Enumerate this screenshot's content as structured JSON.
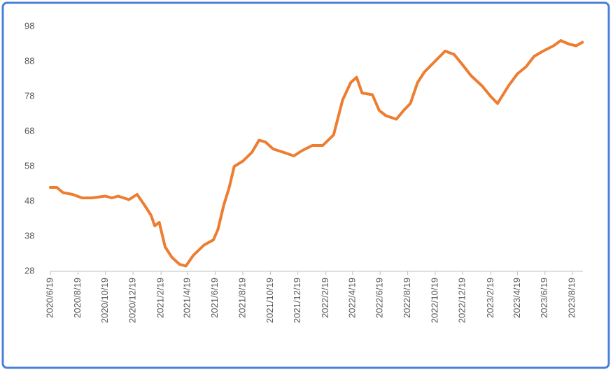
{
  "chart_data": {
    "type": "line",
    "x": [
      "2020/6/19",
      "2020/7/3",
      "2020/7/17",
      "2020/8/7",
      "2020/8/28",
      "2020/9/18",
      "2020/10/19",
      "2020/11/2",
      "2020/11/16",
      "2020/12/10",
      "2020/12/28",
      "2021/1/13",
      "2021/1/28",
      "2021/2/5",
      "2021/2/15",
      "2021/2/28",
      "2021/3/15",
      "2021/4/1",
      "2021/4/15",
      "2021/5/1",
      "2021/5/25",
      "2021/6/15",
      "2021/6/25",
      "2021/7/8",
      "2021/7/20",
      "2021/7/31",
      "2021/8/19",
      "2021/9/8",
      "2021/9/24",
      "2021/10/8",
      "2021/10/25",
      "2021/11/18",
      "2021/12/10",
      "2021/12/28",
      "2022/1/20",
      "2022/2/12",
      "2022/3/8",
      "2022/3/28",
      "2022/4/15",
      "2022/4/28",
      "2022/5/10",
      "2022/6/2",
      "2022/6/17",
      "2022/7/2",
      "2022/7/25",
      "2022/8/10",
      "2022/8/25",
      "2022/9/10",
      "2022/9/25",
      "2022/10/18",
      "2022/11/10",
      "2022/11/30",
      "2022/12/19",
      "2023/1/6",
      "2023/1/31",
      "2023/2/19",
      "2023/3/6",
      "2023/3/30",
      "2023/4/19",
      "2023/5/8",
      "2023/5/26",
      "2023/6/15",
      "2023/7/8",
      "2023/7/24",
      "2023/8/11",
      "2023/8/27",
      "2023/9/10"
    ],
    "series": [
      {
        "color": "#ed7d31",
        "values": [
          52,
          52,
          50.5,
          50,
          49,
          49,
          49.5,
          49,
          49.5,
          48.5,
          50,
          47,
          44,
          41,
          42,
          35,
          32,
          30,
          29.5,
          32.5,
          35.5,
          37,
          40,
          47,
          52,
          58,
          59.5,
          62,
          65.5,
          65,
          63,
          62,
          61,
          62.5,
          64,
          64,
          67,
          77,
          82,
          83.5,
          79,
          78.5,
          74,
          72.5,
          71.5,
          74,
          76,
          82,
          85,
          88,
          91,
          90,
          87,
          84,
          81,
          78,
          76,
          81,
          84.5,
          86.5,
          89.5,
          91,
          92.5,
          94,
          93,
          92.5,
          93.5
        ]
      }
    ],
    "xlim": [
      "2020/6/19",
      "2023/9/11"
    ],
    "xticks": [
      "2020/6/19",
      "2020/8/19",
      "2020/10/19",
      "2020/12/19",
      "2021/2/19",
      "2021/4/19",
      "2021/6/19",
      "2021/8/19",
      "2021/10/19",
      "2021/12/19",
      "2022/2/19",
      "2022/4/19",
      "2022/6/19",
      "2022/8/19",
      "2022/10/19",
      "2022/12/19",
      "2023/2/19",
      "2023/4/19",
      "2023/6/19",
      "2023/8/19"
    ],
    "ylim": [
      28,
      98
    ],
    "yticks": [
      28,
      38,
      48,
      58,
      68,
      78,
      88,
      98
    ],
    "grid": false
  }
}
